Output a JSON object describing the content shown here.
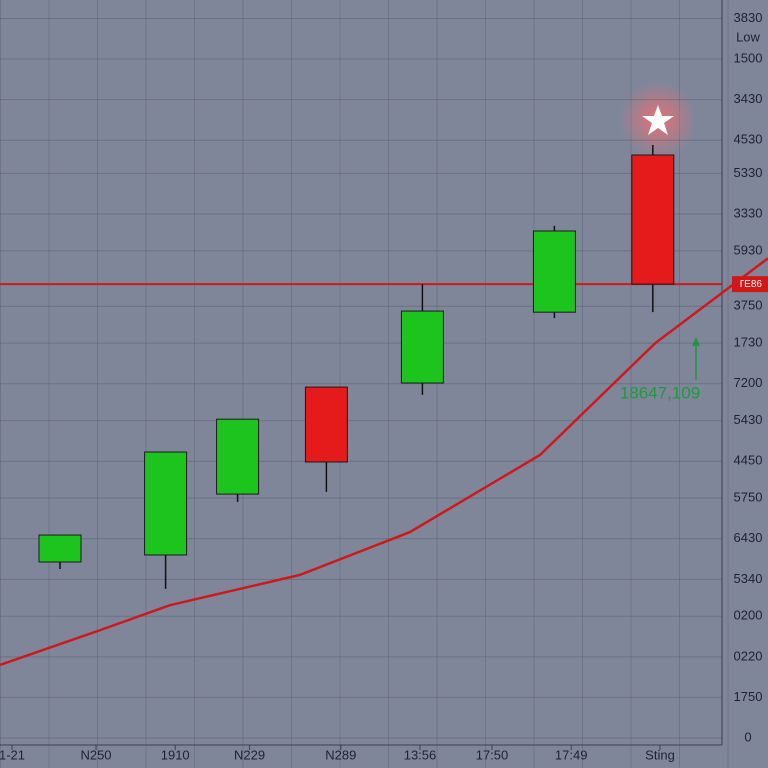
{
  "chart_data": {
    "type": "candlestick",
    "y_axis_label": "Low",
    "xlim": [
      0,
      16
    ],
    "ylim": [
      0,
      20
    ],
    "xticks": [
      {
        "value": 0.25,
        "label": "1-21"
      },
      {
        "value": 2,
        "label": "N250"
      },
      {
        "value": 3.65,
        "label": "1910"
      },
      {
        "value": 5.2,
        "label": "N229"
      },
      {
        "value": 7.1,
        "label": "N289"
      },
      {
        "value": 8.75,
        "label": "13:56"
      },
      {
        "value": 10.25,
        "label": "17:50"
      },
      {
        "value": 11.9,
        "label": "17:49"
      },
      {
        "value": 13.75,
        "label": "Sting"
      }
    ],
    "yticks": [
      0,
      {
        "value": 1.1,
        "label": "1750"
      },
      {
        "value": 2.2,
        "label": "0220"
      },
      {
        "value": 3.3,
        "label": "0200"
      },
      {
        "value": 4.3,
        "label": "5340"
      },
      {
        "value": 5.4,
        "label": "6430"
      },
      {
        "value": 6.5,
        "label": "5750"
      },
      {
        "value": 7.5,
        "label": "4450"
      },
      {
        "value": 8.6,
        "label": "5430"
      },
      {
        "value": 9.6,
        "label": "7200"
      },
      {
        "value": 10.7,
        "label": "1730"
      },
      {
        "value": 11.7,
        "label": "3750"
      },
      {
        "value": 13.2,
        "label": "5930"
      },
      {
        "value": 14.2,
        "label": "3330"
      },
      {
        "value": 15.3,
        "label": "5330"
      },
      {
        "value": 16.2,
        "label": "4530"
      },
      {
        "value": 17.3,
        "label": "3430"
      },
      {
        "value": 18.4,
        "label": "1500"
      },
      {
        "value": 19.5,
        "label": "3830"
      }
    ],
    "grid": true,
    "x": [
      1.25,
      3.45,
      4.95,
      6.8,
      8.8,
      11.55,
      13.6
    ],
    "open": [
      4.77,
      4.96,
      6.61,
      9.51,
      9.62,
      11.54,
      15.8
    ],
    "high": [
      5.5,
      7.75,
      8.64,
      9.51,
      12.3,
      13.88,
      16.07
    ],
    "low": [
      4.58,
      4.04,
      6.4,
      6.67,
      9.3,
      11.38,
      11.54
    ],
    "close": [
      5.5,
      7.75,
      8.64,
      7.48,
      11.57,
      13.74,
      12.3
    ],
    "up_color": "#1ec41e",
    "down_color": "#e51b1b",
    "level_line": {
      "value": 12.3,
      "label": "TE86",
      "color": "#d01818"
    },
    "trend_line": {
      "x": [
        0,
        2.08,
        3.54,
        6.25,
        8.54,
        11.25,
        13.65,
        16
      ],
      "values": [
        1.98,
        2.92,
        3.6,
        4.42,
        5.58,
        7.67,
        10.7,
        13.0
      ],
      "color": "#cc1a1a"
    },
    "annotation": {
      "text": "18647,109",
      "color": "#1c9a3c"
    }
  }
}
